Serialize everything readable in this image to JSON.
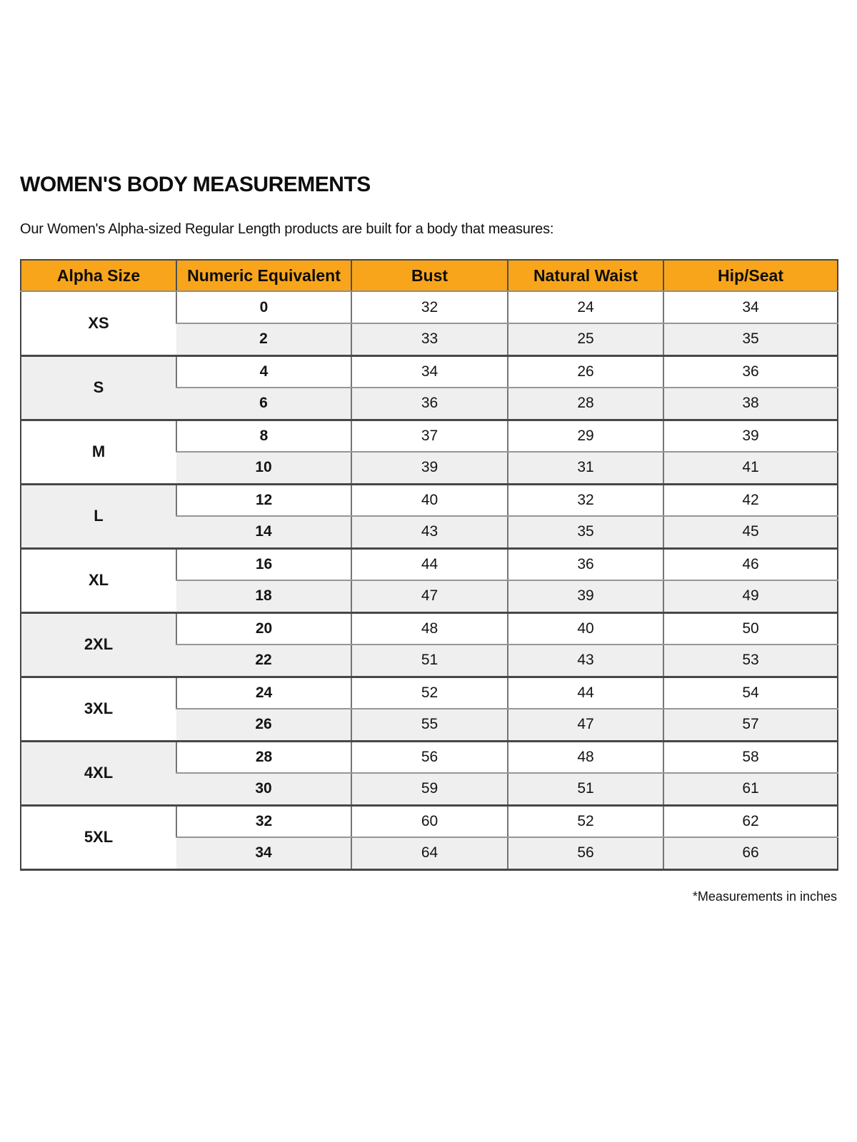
{
  "page": {
    "title": "WOMEN'S BODY MEASUREMENTS",
    "subtitle": "Our Women's Alpha-sized Regular Length products are built for a body that measures:",
    "footnote": "*Measurements in inches"
  },
  "colors": {
    "header_bg": "#F9A51B",
    "row_alt_bg": "#EFEFEF",
    "outer_border": "#454545",
    "group_border": "#474747",
    "row_border": "#969696",
    "col_border": "#757575",
    "text": "#131313"
  },
  "chart_data": {
    "type": "table",
    "title": "Women's Body Measurements",
    "units": "inches",
    "columns": [
      "Alpha Size",
      "Numeric Equivalent",
      "Bust",
      "Natural Waist",
      "Hip/Seat"
    ],
    "groups": [
      {
        "alpha_size": "XS",
        "rows": [
          [
            "0",
            "32",
            "24",
            "34"
          ],
          [
            "2",
            "33",
            "25",
            "35"
          ]
        ]
      },
      {
        "alpha_size": "S",
        "rows": [
          [
            "4",
            "34",
            "26",
            "36"
          ],
          [
            "6",
            "36",
            "28",
            "38"
          ]
        ]
      },
      {
        "alpha_size": "M",
        "rows": [
          [
            "8",
            "37",
            "29",
            "39"
          ],
          [
            "10",
            "39",
            "31",
            "41"
          ]
        ]
      },
      {
        "alpha_size": "L",
        "rows": [
          [
            "12",
            "40",
            "32",
            "42"
          ],
          [
            "14",
            "43",
            "35",
            "45"
          ]
        ]
      },
      {
        "alpha_size": "XL",
        "rows": [
          [
            "16",
            "44",
            "36",
            "46"
          ],
          [
            "18",
            "47",
            "39",
            "49"
          ]
        ]
      },
      {
        "alpha_size": "2XL",
        "rows": [
          [
            "20",
            "48",
            "40",
            "50"
          ],
          [
            "22",
            "51",
            "43",
            "53"
          ]
        ]
      },
      {
        "alpha_size": "3XL",
        "rows": [
          [
            "24",
            "52",
            "44",
            "54"
          ],
          [
            "26",
            "55",
            "47",
            "57"
          ]
        ]
      },
      {
        "alpha_size": "4XL",
        "rows": [
          [
            "28",
            "56",
            "48",
            "58"
          ],
          [
            "30",
            "59",
            "51",
            "61"
          ]
        ]
      },
      {
        "alpha_size": "5XL",
        "rows": [
          [
            "32",
            "60",
            "52",
            "62"
          ],
          [
            "34",
            "64",
            "56",
            "66"
          ]
        ]
      }
    ]
  }
}
